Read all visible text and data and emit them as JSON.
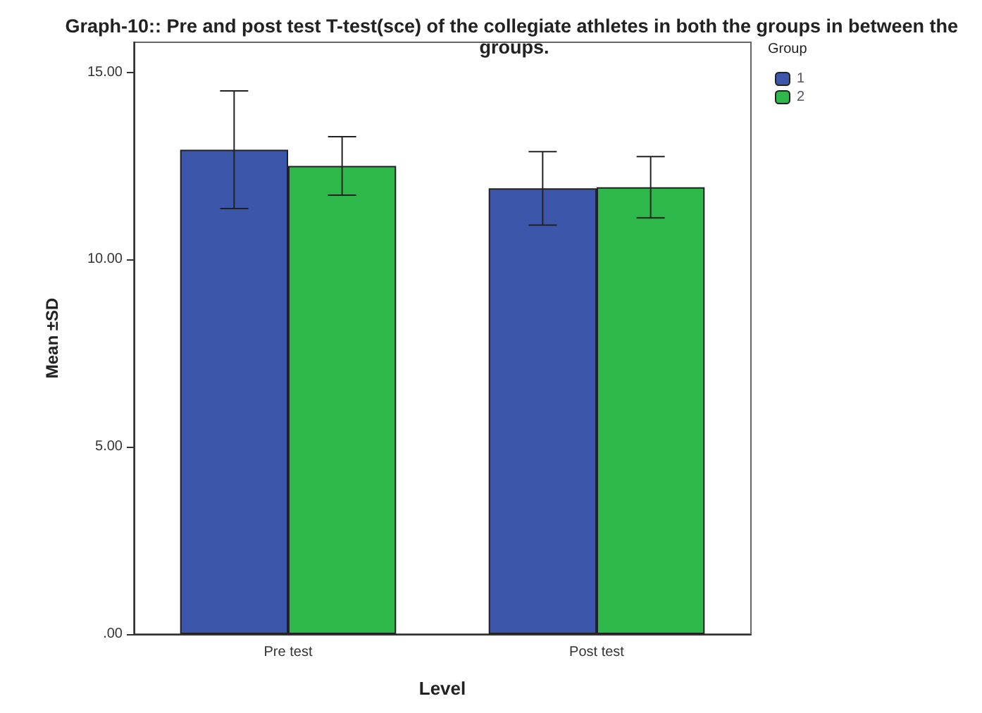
{
  "chart_data": {
    "type": "bar",
    "title": "Graph-10:: Pre and post test T-test(sce) of the collegiate athletes in both the groups in between the groups.",
    "xlabel": "Level",
    "ylabel": "Mean ±SD",
    "legend_title": "Group",
    "categories": [
      "Pre test",
      "Post test"
    ],
    "series": [
      {
        "name": "1",
        "color": "#3c56aa",
        "values": [
          12.93,
          11.9
        ],
        "errors": [
          1.57,
          0.98
        ]
      },
      {
        "name": "2",
        "color": "#2fb84a",
        "values": [
          12.5,
          11.93
        ],
        "errors": [
          0.78,
          0.82
        ]
      }
    ],
    "ylim": [
      0,
      15.8
    ],
    "yticks": [
      {
        "value": 0,
        "label": ".00"
      },
      {
        "value": 5,
        "label": "5.00"
      },
      {
        "value": 10,
        "label": "10.00"
      },
      {
        "value": 15,
        "label": "15.00"
      }
    ],
    "grid": false,
    "legend": "top right"
  }
}
